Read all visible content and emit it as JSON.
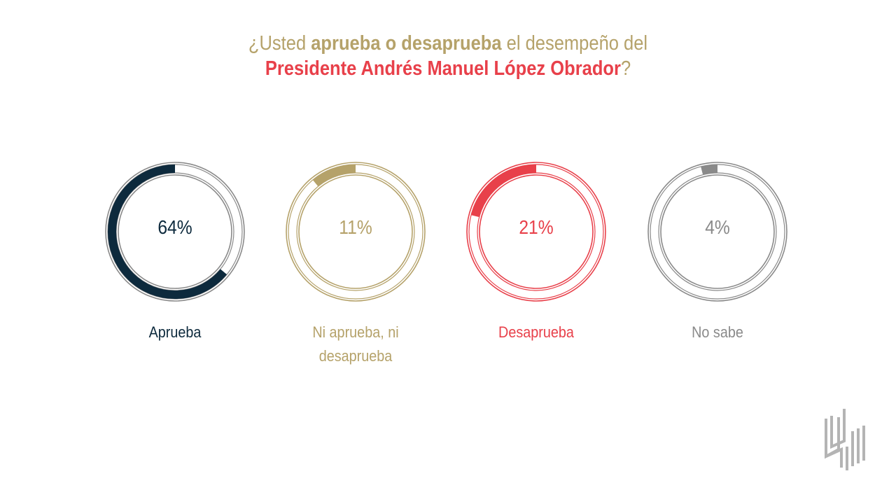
{
  "title": {
    "line1_pre": "¿Usted ",
    "line1_bold": "aprueba o desaprueba",
    "line1_post": " el desempeño del",
    "line2_bold": "Presidente Andrés Manuel López Obrador",
    "line2_post": "?"
  },
  "chart_data": {
    "type": "pie",
    "variant": "donut-small-multiples",
    "categories": [
      "Aprueba",
      "Ni aprueba, ni desaprueba",
      "Desaprueba",
      "No sabe"
    ],
    "values": [
      64,
      11,
      21,
      4
    ],
    "value_labels": [
      "64%",
      "11%",
      "21%",
      "4%"
    ],
    "colors": [
      "#0d2a3d",
      "#b5a26a",
      "#e8404a",
      "#8a8a8a"
    ],
    "direction": "counterclockwise-from-top"
  },
  "labels": {
    "label_2_line1": "Ni aprueba, ni",
    "label_2_line2": "desaprueba"
  },
  "logo": {
    "icon": "brand-logo-icon",
    "color": "#b4b4b4"
  }
}
